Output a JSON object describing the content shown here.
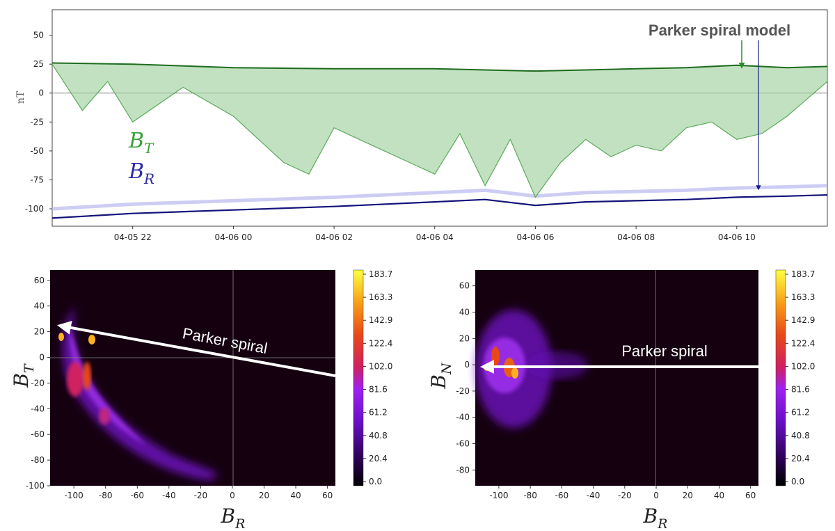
{
  "chart_data": [
    {
      "type": "line",
      "id": "timeseries",
      "ylabel": "nT",
      "xticks": [
        "04-05 22",
        "04-06 00",
        "04-06 02",
        "04-06 04",
        "04-06 06",
        "04-06 08",
        "04-06 10"
      ],
      "xlim_hours": [
        -3.6,
        11.8
      ],
      "ylim": [
        -115,
        72
      ],
      "yticks": [
        50,
        25,
        0,
        -25,
        -50,
        -75,
        -100
      ],
      "series": [
        {
          "name": "B_T",
          "label_main": "B",
          "label_sub": "T",
          "color": "#2e8b2e",
          "model_values": [
            [
              -3.6,
              26
            ],
            [
              -2,
              25
            ],
            [
              0,
              22
            ],
            [
              2,
              21
            ],
            [
              4,
              21
            ],
            [
              5,
              20
            ],
            [
              6,
              19
            ],
            [
              7,
              20
            ],
            [
              8,
              21
            ],
            [
              9,
              22
            ],
            [
              10,
              24
            ],
            [
              11,
              22
            ],
            [
              11.8,
              23
            ]
          ],
          "observed_values": [
            [
              -3.6,
              25
            ],
            [
              -3,
              -15
            ],
            [
              -2.5,
              10
            ],
            [
              -2,
              -25
            ],
            [
              -1,
              5
            ],
            [
              0,
              -20
            ],
            [
              0.5,
              -40
            ],
            [
              1,
              -60
            ],
            [
              1.5,
              -70
            ],
            [
              2,
              -30
            ],
            [
              2.5,
              -40
            ],
            [
              3,
              -50
            ],
            [
              3.5,
              -60
            ],
            [
              4,
              -70
            ],
            [
              4.5,
              -35
            ],
            [
              5,
              -80
            ],
            [
              5.5,
              -40
            ],
            [
              6,
              -90
            ],
            [
              6.5,
              -60
            ],
            [
              7,
              -40
            ],
            [
              7.5,
              -55
            ],
            [
              8,
              -45
            ],
            [
              8.5,
              -50
            ],
            [
              9,
              -30
            ],
            [
              9.5,
              -25
            ],
            [
              10,
              -40
            ],
            [
              10.5,
              -35
            ],
            [
              11,
              -20
            ],
            [
              11.8,
              10
            ]
          ]
        },
        {
          "name": "B_R",
          "label_main": "B",
          "label_sub": "R",
          "color": "#1a1a8c",
          "model_values": [
            [
              -3.6,
              -108
            ],
            [
              -2,
              -104
            ],
            [
              0,
              -101
            ],
            [
              2,
              -98
            ],
            [
              4,
              -94
            ],
            [
              5,
              -92
            ],
            [
              6,
              -97
            ],
            [
              7,
              -94
            ],
            [
              8,
              -93
            ],
            [
              9,
              -92
            ],
            [
              10,
              -90
            ],
            [
              11,
              -89
            ],
            [
              11.8,
              -88
            ]
          ]
        }
      ],
      "annotation": "Parker spiral model"
    },
    {
      "type": "heatmap",
      "id": "br_bt",
      "xlabel_main": "B",
      "xlabel_sub": "R",
      "ylabel_main": "B",
      "ylabel_sub": "T",
      "xlim": [
        -115,
        65
      ],
      "ylim": [
        -100,
        68
      ],
      "xticks": [
        -100,
        -80,
        -60,
        -40,
        -20,
        0,
        20,
        40,
        60
      ],
      "yticks": [
        60,
        40,
        20,
        0,
        -20,
        -40,
        -60,
        -80,
        -100
      ],
      "colorbar_ticks": [
        "183.7",
        "163.3",
        "142.9",
        "122.4",
        "102.0",
        "81.6",
        "61.2",
        "40.8",
        "20.4",
        "0.0"
      ],
      "arrow_label": "Parker spiral",
      "arrow": {
        "from": [
          65,
          -15
        ],
        "to": [
          -113,
          25
        ]
      }
    },
    {
      "type": "heatmap",
      "id": "br_bn",
      "xlabel_main": "B",
      "xlabel_sub": "R",
      "ylabel_main": "B",
      "ylabel_sub": "N",
      "xlim": [
        -115,
        65
      ],
      "ylim": [
        -92,
        72
      ],
      "xticks": [
        -100,
        -80,
        -60,
        -40,
        -20,
        0,
        20,
        40,
        60
      ],
      "yticks": [
        60,
        40,
        20,
        0,
        -20,
        -40,
        -60,
        -80
      ],
      "colorbar_ticks": [
        "183.7",
        "163.3",
        "142.9",
        "122.4",
        "102.0",
        "81.6",
        "61.2",
        "40.8",
        "20.4",
        "0.0"
      ],
      "arrow_label": "Parker spiral",
      "arrow": {
        "from": [
          65,
          0
        ],
        "to": [
          -113,
          0
        ]
      }
    }
  ]
}
